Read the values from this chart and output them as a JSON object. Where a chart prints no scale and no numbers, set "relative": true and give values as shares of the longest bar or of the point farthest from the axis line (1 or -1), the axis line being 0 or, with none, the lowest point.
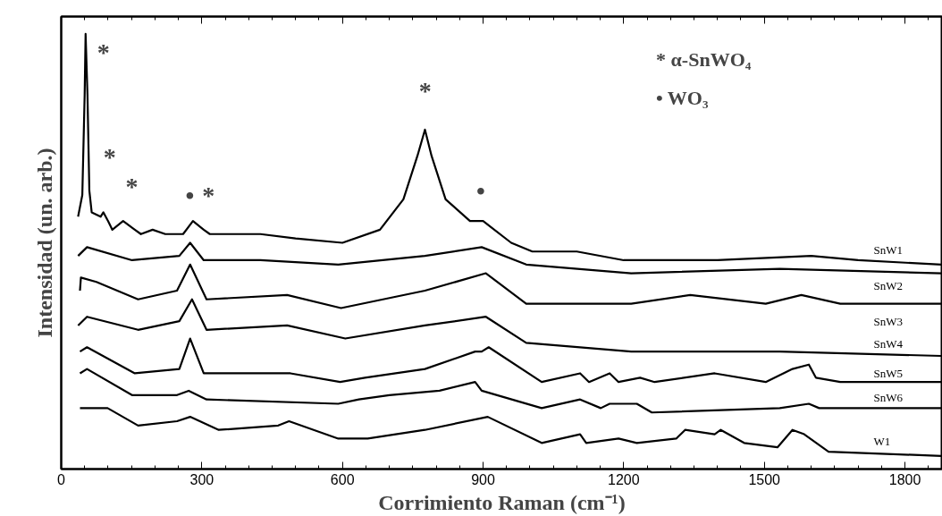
{
  "chart_data": {
    "type": "line",
    "relative": true,
    "xlabel": "Corrimiento Raman (cm⁻¹)",
    "ylabel": "Intensidad (un. arb.)",
    "xlim": [
      0,
      1880
    ],
    "xticks": [
      0,
      300,
      600,
      900,
      1200,
      1500,
      1800
    ],
    "tick_labels": "x",
    "series": [
      {
        "name": "SnW1",
        "color": "#000000",
        "x": [
          36,
          45,
          50,
          52,
          56,
          60,
          65,
          84,
          90,
          100,
          109,
          132,
          157,
          170,
          195,
          222,
          260,
          281,
          304,
          317,
          425,
          500,
          600,
          680,
          730,
          760,
          776,
          790,
          820,
          872,
          900,
          960,
          1005,
          1100,
          1200,
          1400,
          1600,
          1700,
          1878
        ],
        "values": [
          0.58,
          0.63,
          0.86,
          1.0,
          0.86,
          0.64,
          0.59,
          0.58,
          0.59,
          0.57,
          0.55,
          0.57,
          0.55,
          0.54,
          0.55,
          0.54,
          0.54,
          0.57,
          0.55,
          0.54,
          0.54,
          0.53,
          0.52,
          0.55,
          0.62,
          0.72,
          0.78,
          0.72,
          0.62,
          0.57,
          0.57,
          0.52,
          0.5,
          0.5,
          0.48,
          0.48,
          0.49,
          0.48,
          0.47
        ]
      },
      {
        "name": "SnW2",
        "color": "#000000",
        "x": [
          36,
          55,
          151,
          252,
          275,
          304,
          425,
          591,
          776,
          897,
          992,
          1216,
          1533,
          1878
        ],
        "values": [
          0.49,
          0.51,
          0.48,
          0.49,
          0.52,
          0.48,
          0.48,
          0.47,
          0.49,
          0.51,
          0.47,
          0.45,
          0.46,
          0.45
        ]
      },
      {
        "name": "SnW3",
        "color": "#000000",
        "x": [
          40,
          42,
          75,
          164,
          247,
          275,
          310,
          482,
          597,
          776,
          906,
          992,
          1216,
          1342,
          1503,
          1579,
          1662,
          1878
        ],
        "values": [
          0.41,
          0.44,
          0.43,
          0.39,
          0.41,
          0.47,
          0.39,
          0.4,
          0.37,
          0.41,
          0.45,
          0.38,
          0.38,
          0.4,
          0.38,
          0.4,
          0.38,
          0.38
        ]
      },
      {
        "name": "SnW4",
        "color": "#000000",
        "x": [
          36,
          55,
          164,
          252,
          279,
          310,
          482,
          606,
          776,
          906,
          992,
          1216,
          1533,
          1878
        ],
        "values": [
          0.33,
          0.35,
          0.32,
          0.34,
          0.39,
          0.32,
          0.33,
          0.3,
          0.33,
          0.35,
          0.29,
          0.27,
          0.27,
          0.26
        ]
      },
      {
        "name": "SnW5",
        "color": "#000000",
        "x": [
          40,
          55,
          157,
          252,
          275,
          304,
          489,
          595,
          648,
          776,
          883,
          897,
          912,
          1025,
          1107,
          1126,
          1170,
          1189,
          1235,
          1266,
          1394,
          1503,
          1560,
          1595,
          1610,
          1662,
          1878
        ],
        "values": [
          0.27,
          0.28,
          0.22,
          0.23,
          0.3,
          0.22,
          0.22,
          0.2,
          0.21,
          0.23,
          0.27,
          0.27,
          0.28,
          0.2,
          0.22,
          0.2,
          0.22,
          0.2,
          0.21,
          0.2,
          0.22,
          0.2,
          0.23,
          0.24,
          0.21,
          0.2,
          0.2
        ]
      },
      {
        "name": "SnW6",
        "color": "#000000",
        "x": [
          40,
          55,
          151,
          247,
          272,
          310,
          591,
          635,
          700,
          807,
          883,
          897,
          1025,
          1107,
          1151,
          1170,
          1228,
          1260,
          1533,
          1595,
          1617,
          1878
        ],
        "values": [
          0.22,
          0.23,
          0.17,
          0.17,
          0.18,
          0.16,
          0.15,
          0.16,
          0.17,
          0.18,
          0.2,
          0.18,
          0.14,
          0.16,
          0.14,
          0.15,
          0.15,
          0.13,
          0.14,
          0.15,
          0.14,
          0.14
        ]
      },
      {
        "name": "W1",
        "color": "#000000",
        "x": [
          40,
          61,
          99,
          164,
          247,
          275,
          336,
          463,
          486,
          591,
          654,
          776,
          910,
          1025,
          1107,
          1120,
          1189,
          1228,
          1312,
          1331,
          1394,
          1407,
          1457,
          1528,
          1560,
          1585,
          1637,
          1878
        ],
        "values": [
          0.14,
          0.14,
          0.14,
          0.1,
          0.11,
          0.12,
          0.09,
          0.1,
          0.11,
          0.07,
          0.07,
          0.09,
          0.12,
          0.06,
          0.08,
          0.06,
          0.07,
          0.06,
          0.07,
          0.09,
          0.08,
          0.09,
          0.06,
          0.05,
          0.09,
          0.08,
          0.04,
          0.03
        ]
      }
    ],
    "annotations": [
      "*",
      "*",
      "*",
      "•",
      "*",
      "*",
      "•",
      "* α-SnWO₄",
      "• WO₃"
    ]
  }
}
